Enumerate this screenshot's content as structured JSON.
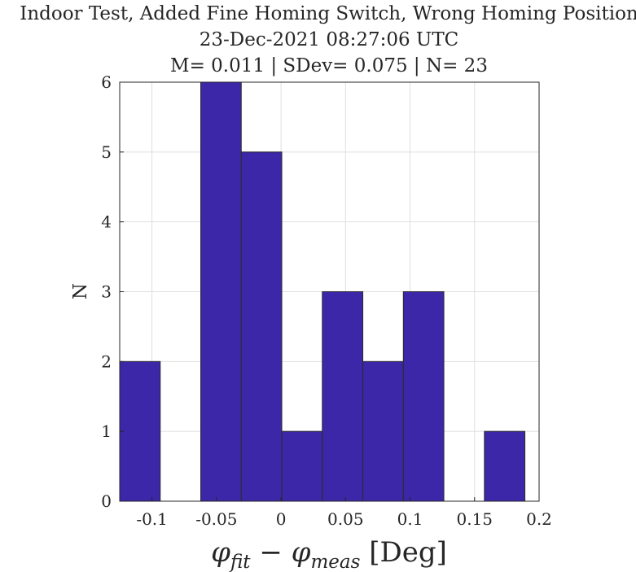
{
  "chart_data": {
    "type": "bar",
    "title_lines": [
      "Indoor Test, Added Fine Homing Switch, Wrong Homing Position",
      "23-Dec-2021 08:27:06 UTC",
      "M= 0.011 | SDev= 0.075 | N= 23"
    ],
    "xlabel": {
      "main_1": "φ",
      "sub_1": "fit",
      "minus": " − ",
      "main_2": "φ",
      "sub_2": "meas",
      "unit": " [Deg]"
    },
    "ylabel": "N",
    "xlim": [
      -0.125,
      0.2
    ],
    "ylim": [
      0,
      6
    ],
    "x_ticks": [
      -0.1,
      -0.05,
      0,
      0.05,
      0.1,
      0.15,
      0.2
    ],
    "x_tick_labels": [
      "-0.1",
      "-0.05",
      "0",
      "0.05",
      "0.1",
      "0.15",
      "0.2"
    ],
    "y_ticks": [
      0,
      1,
      2,
      3,
      4,
      5,
      6
    ],
    "y_tick_labels": [
      "0",
      "1",
      "2",
      "3",
      "4",
      "5",
      "6"
    ],
    "bin_edges": [
      -0.125,
      -0.0936,
      -0.0622,
      -0.0308,
      0.0006,
      0.032,
      0.0634,
      0.0948,
      0.1262,
      0.1576,
      0.189
    ],
    "counts": [
      2,
      0,
      6,
      5,
      1,
      3,
      2,
      3,
      0,
      1
    ],
    "bar_color": "#3C27A8",
    "edge_color": "#2B2B2B",
    "grid": true
  }
}
